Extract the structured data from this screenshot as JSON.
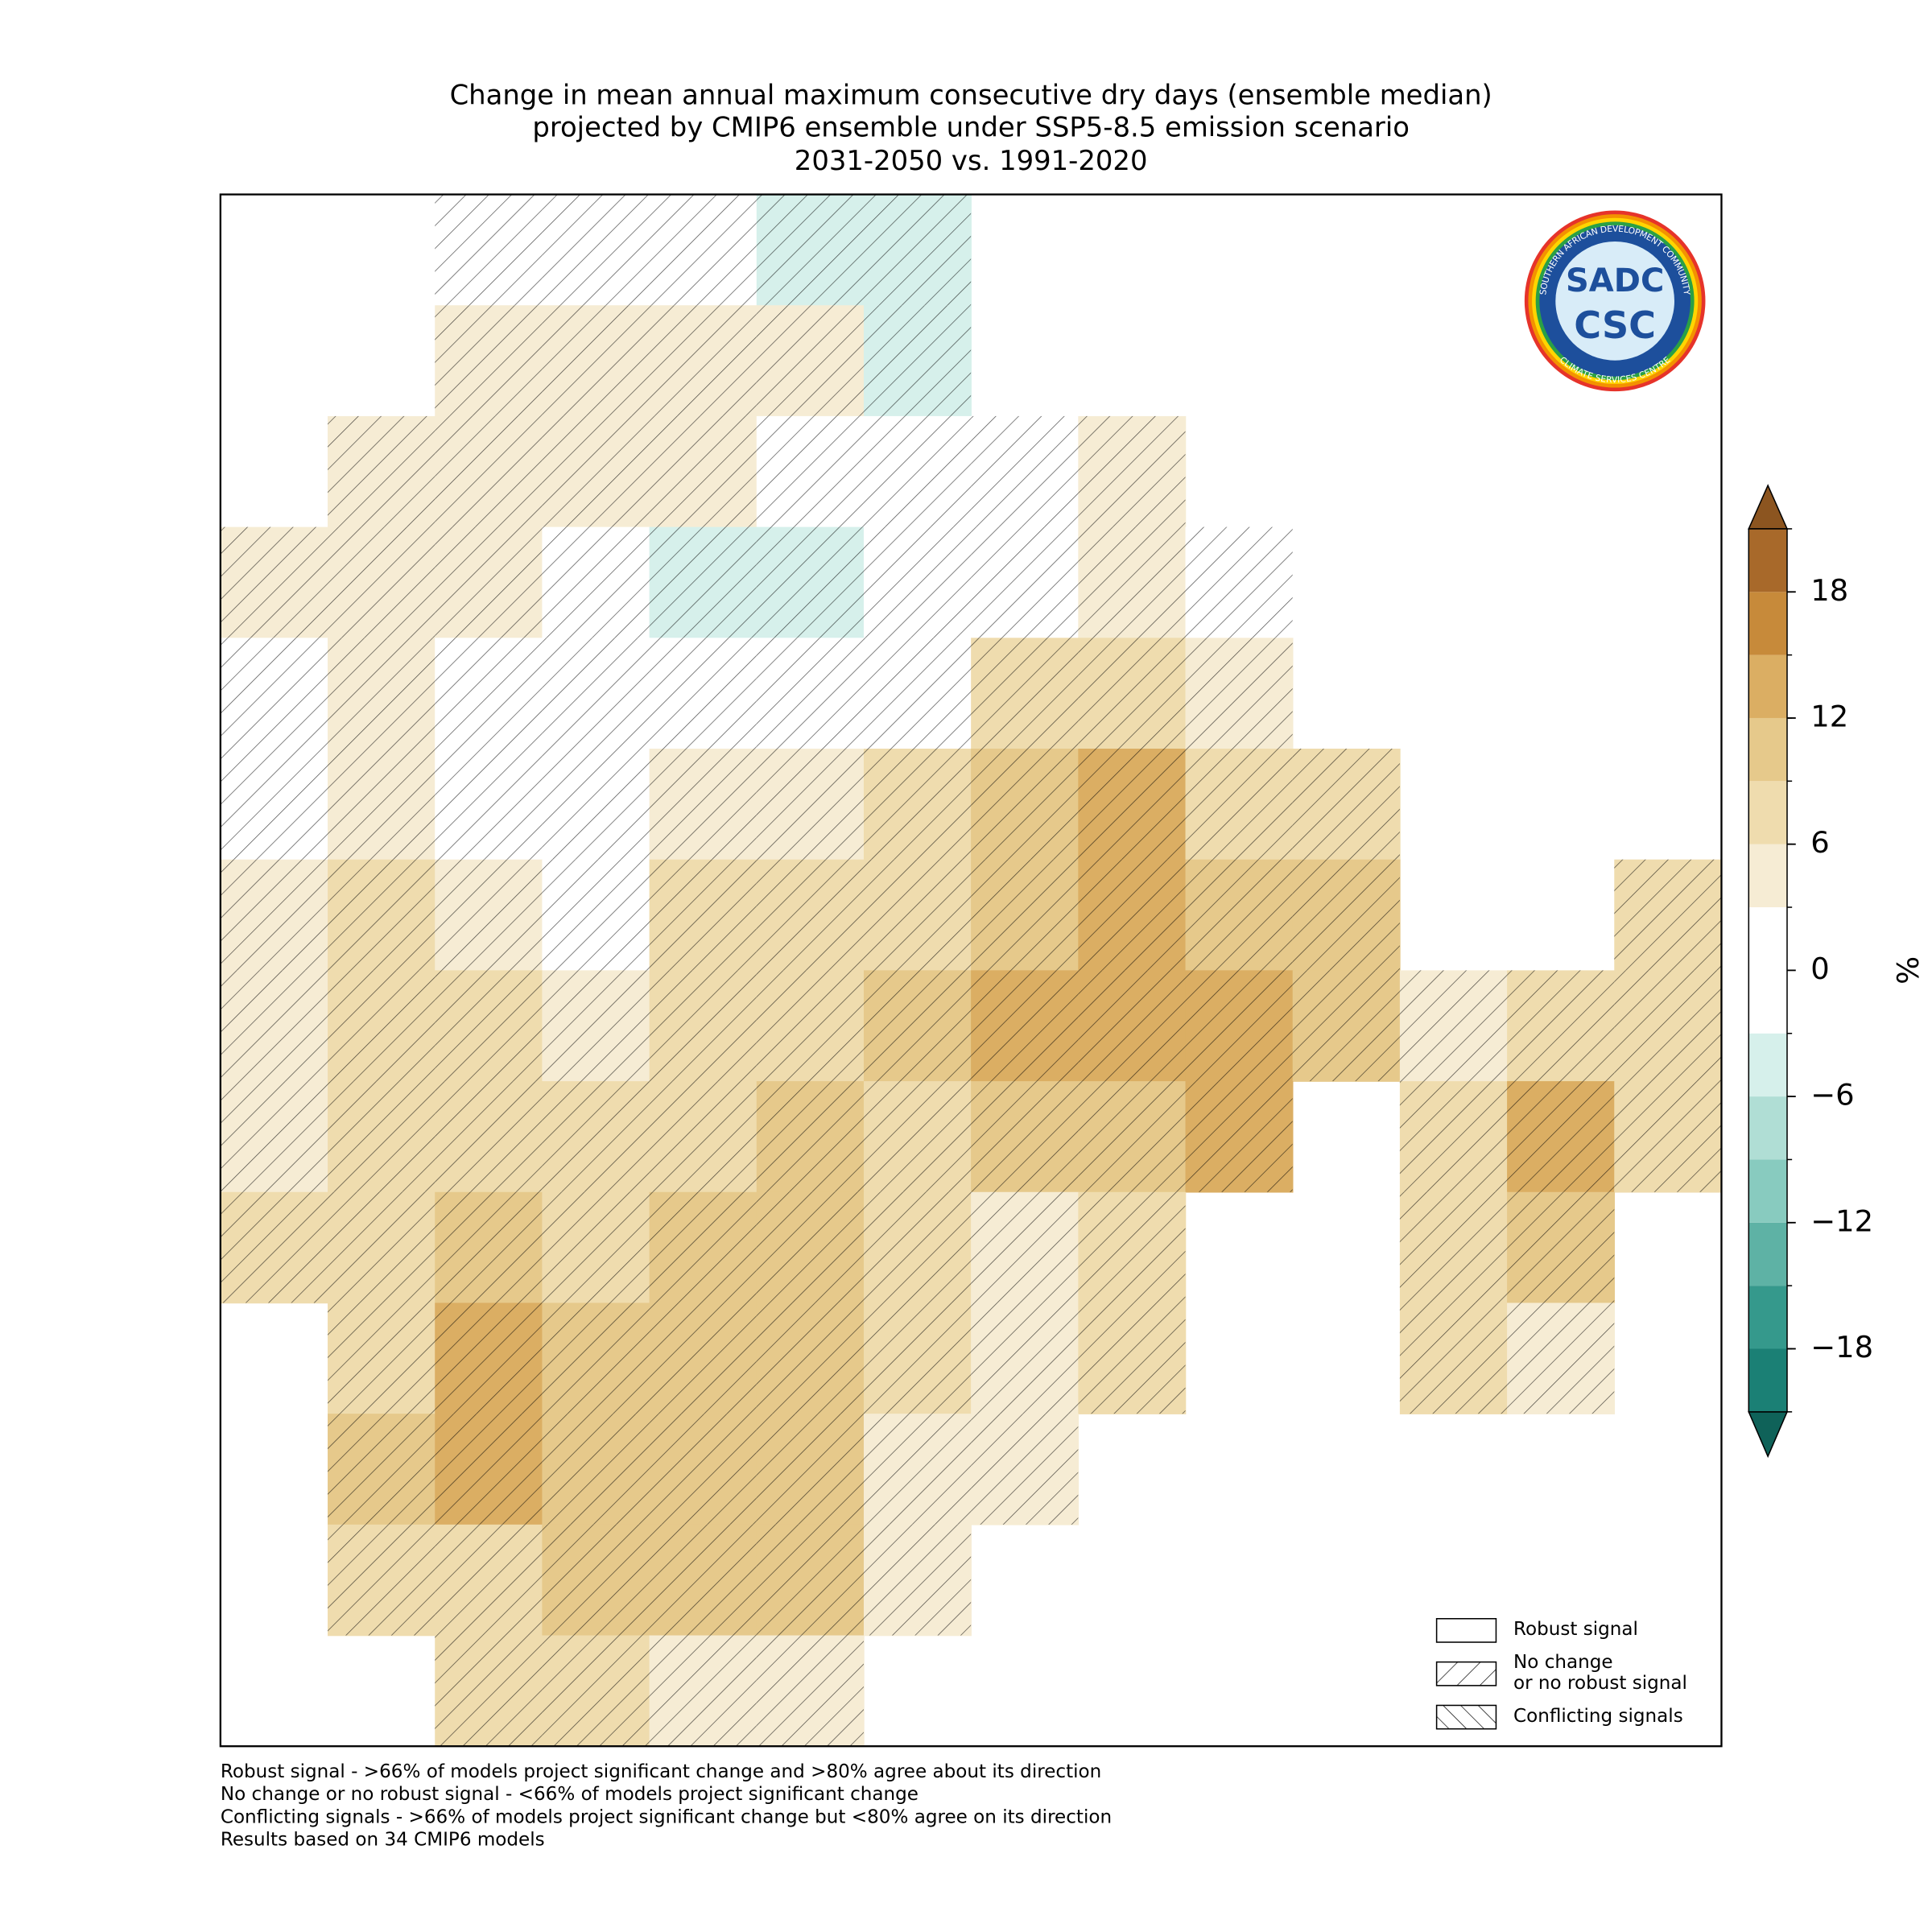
{
  "title": [
    "Change in mean annual maximum consecutive dry days (ensemble median)",
    "projected by CMIP6 ensemble under SSP5-8.5 emission scenario",
    "2031-2050 vs. 1991-2020"
  ],
  "map": {
    "field": [
      [
        null,
        null,
        0,
        0,
        0,
        -4,
        -5,
        null,
        null,
        null,
        null,
        null,
        null,
        null
      ],
      [
        null,
        null,
        4,
        4,
        3,
        3,
        -4,
        null,
        null,
        null,
        null,
        null,
        null,
        null
      ],
      [
        null,
        5,
        4,
        3,
        3,
        2,
        0,
        0,
        4,
        null,
        null,
        null,
        null,
        null
      ],
      [
        4,
        5,
        3,
        0,
        -4,
        -4,
        0,
        0,
        5,
        -3,
        null,
        null,
        null,
        null
      ],
      [
        2,
        5,
        0,
        0,
        0,
        0,
        0,
        8,
        6,
        3,
        null,
        null,
        null,
        null
      ],
      [
        2,
        4,
        0,
        0,
        4,
        5,
        7,
        10,
        12,
        8,
        6,
        null,
        null,
        null
      ],
      [
        3,
        6,
        4,
        0,
        6,
        7,
        8,
        11,
        13,
        11,
        9,
        null,
        null,
        7
      ],
      [
        5,
        7,
        6,
        5,
        6,
        8,
        9,
        12,
        14,
        13,
        11,
        5,
        8,
        7
      ],
      [
        5,
        8,
        7,
        6,
        8,
        10,
        8,
        9,
        9,
        12,
        null,
        6,
        12,
        8
      ],
      [
        7,
        8,
        9,
        8,
        10,
        10,
        6,
        4,
        6,
        null,
        null,
        6,
        10,
        null
      ],
      [
        null,
        8,
        12,
        10,
        11,
        11,
        6,
        4,
        6,
        null,
        null,
        8,
        5,
        null
      ],
      [
        null,
        9,
        12,
        9,
        10,
        10,
        5,
        3,
        null,
        null,
        null,
        null,
        null,
        null
      ],
      [
        null,
        6,
        8,
        10,
        11,
        10,
        4,
        null,
        null,
        null,
        null,
        null,
        null,
        null
      ],
      [
        null,
        null,
        6,
        6,
        5,
        3,
        null,
        null,
        null,
        null,
        null,
        null,
        null,
        null
      ]
    ]
  },
  "colorbar": {
    "label": "%",
    "lim": [
      -21,
      21
    ],
    "levels": [
      -21,
      -18,
      -15,
      -12,
      -9,
      -6,
      -3,
      3,
      6,
      9,
      12,
      15,
      18,
      21
    ],
    "colors": [
      "#1b8075",
      "#35998c",
      "#5eb2a5",
      "#88cbbf",
      "#b0ded5",
      "#d6f0eb",
      "#ffffff",
      "#f6ecd4",
      "#efdcae",
      "#e6c98b",
      "#dbae63",
      "#c78a3a",
      "#a8692a"
    ],
    "extend_colors": [
      "#0f6259",
      "#8c5520"
    ],
    "ticks": [
      {
        "value": -18,
        "label": "−18"
      },
      {
        "value": -12,
        "label": "−12"
      },
      {
        "value": -6,
        "label": "−6"
      },
      0,
      6,
      12,
      18
    ]
  },
  "legend": [
    {
      "label_lines": [
        "Robust signal"
      ],
      "hatch": "none"
    },
    {
      "label_lines": [
        "No change",
        "or no robust signal"
      ],
      "hatch": "/"
    },
    {
      "label_lines": [
        "Conflicting signals"
      ],
      "hatch": "\\"
    }
  ],
  "notes": [
    "Robust signal - >66% of models project significant change and >80% agree about its direction",
    "No change or no robust signal - <66% of models project significant change",
    "Conflicting signals - >66% of models project significant change but <80% agree on its direction",
    "Results based on 34 CMIP6 models"
  ],
  "logo": {
    "top": "SADC",
    "bottom": "CSC",
    "ring_top": "SOUTHERN AFRICAN DEVELOPMENT COMMUNITY",
    "ring_bottom": "CLIMATE SERVICES CENTRE"
  }
}
